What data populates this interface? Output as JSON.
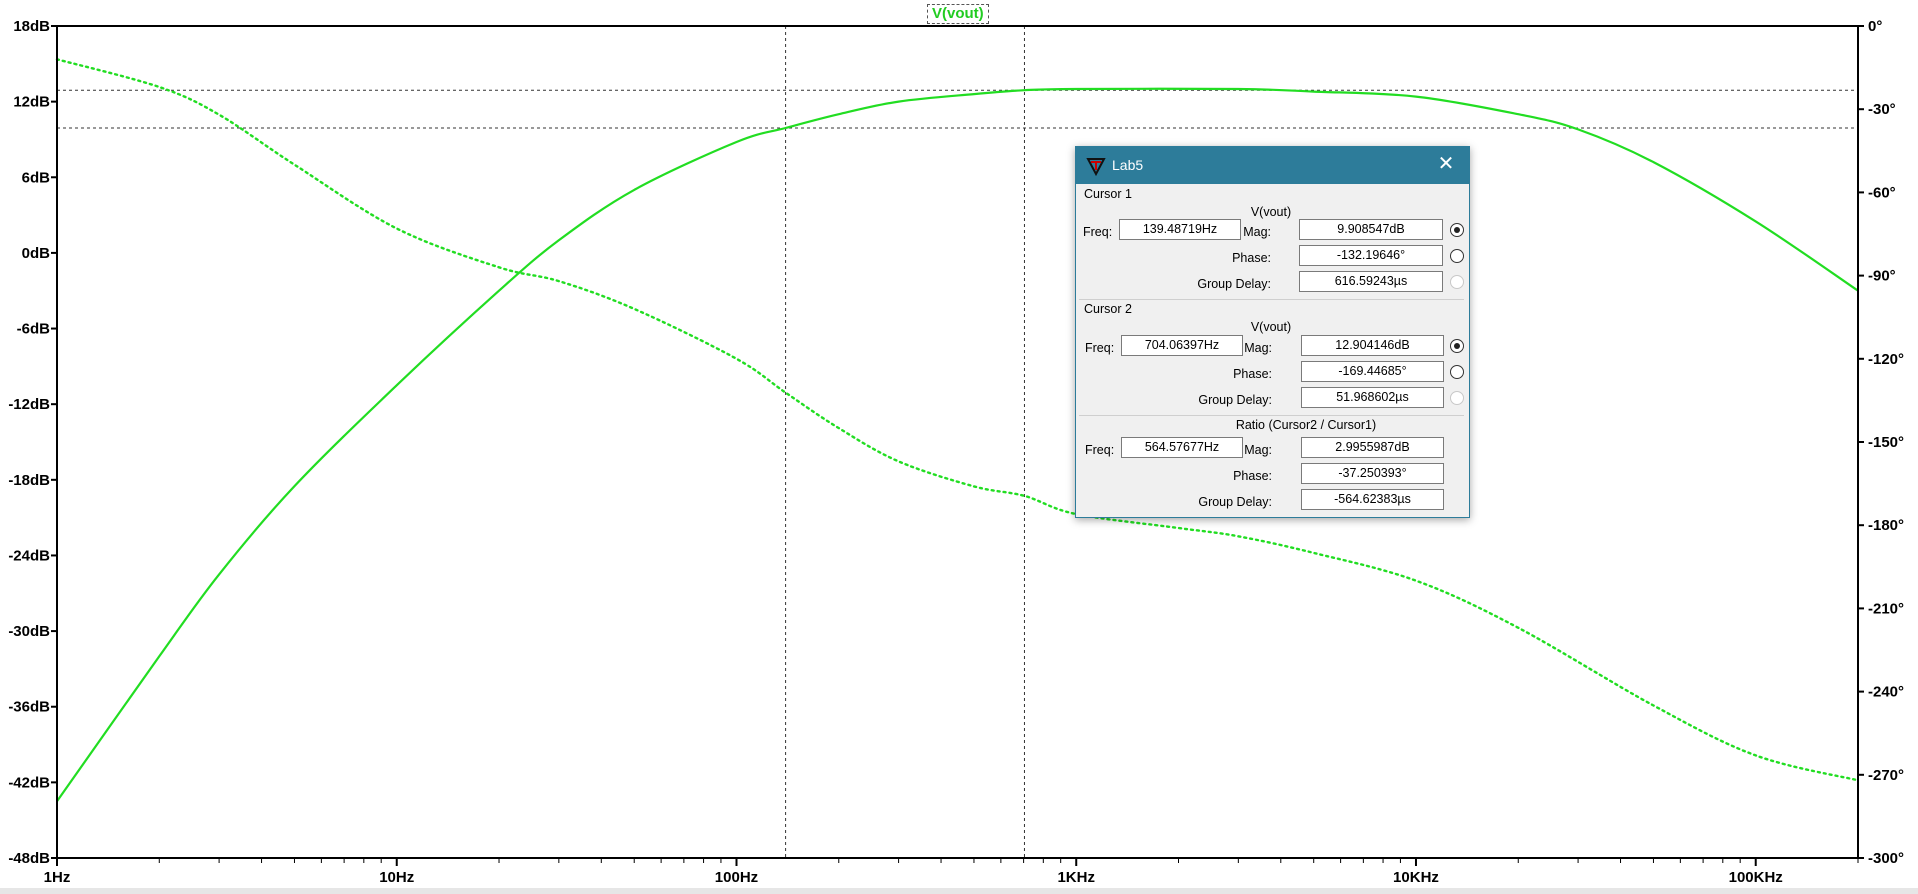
{
  "chart_data": {
    "type": "line",
    "trace_name": "V(vout)",
    "x_scale": "log",
    "xlim_hz": [
      1,
      200000
    ],
    "x_ticks": [
      {
        "value": 1,
        "label": "1Hz"
      },
      {
        "value": 10,
        "label": "10Hz"
      },
      {
        "value": 100,
        "label": "100Hz"
      },
      {
        "value": 1000,
        "label": "1KHz"
      },
      {
        "value": 10000,
        "label": "10KHz"
      },
      {
        "value": 100000,
        "label": "100KHz"
      }
    ],
    "left_axis": {
      "unit": "dB",
      "range": [
        -48,
        18
      ],
      "ticks": [
        {
          "value": 18,
          "label": "18dB"
        },
        {
          "value": 12,
          "label": "12dB"
        },
        {
          "value": 6,
          "label": "6dB"
        },
        {
          "value": 0,
          "label": "0dB"
        },
        {
          "value": -6,
          "label": "-6dB"
        },
        {
          "value": -12,
          "label": "-12dB"
        },
        {
          "value": -18,
          "label": "-18dB"
        },
        {
          "value": -24,
          "label": "-24dB"
        },
        {
          "value": -30,
          "label": "-30dB"
        },
        {
          "value": -36,
          "label": "-36dB"
        },
        {
          "value": -42,
          "label": "-42dB"
        },
        {
          "value": -48,
          "label": "-48dB"
        }
      ]
    },
    "right_axis": {
      "unit": "degrees",
      "range": [
        -300,
        0
      ],
      "ticks": [
        {
          "value": 0,
          "label": "0°"
        },
        {
          "value": -30,
          "label": "-30°"
        },
        {
          "value": -60,
          "label": "-60°"
        },
        {
          "value": -90,
          "label": "-90°"
        },
        {
          "value": -120,
          "label": "-120°"
        },
        {
          "value": -150,
          "label": "-150°"
        },
        {
          "value": -180,
          "label": "-180°"
        },
        {
          "value": -210,
          "label": "-210°"
        },
        {
          "value": -240,
          "label": "-240°"
        },
        {
          "value": -270,
          "label": "-270°"
        },
        {
          "value": -300,
          "label": "-300°"
        }
      ]
    },
    "magnitude_series": {
      "style": "solid",
      "points": [
        [
          1,
          -43.5
        ],
        [
          2,
          -32
        ],
        [
          3,
          -25.5
        ],
        [
          5,
          -18.5
        ],
        [
          10,
          -10.5
        ],
        [
          20,
          -3
        ],
        [
          30,
          1
        ],
        [
          50,
          5
        ],
        [
          100,
          8.8
        ],
        [
          139.48719,
          9.908547
        ],
        [
          200,
          11
        ],
        [
          300,
          12
        ],
        [
          500,
          12.6
        ],
        [
          704.06397,
          12.904146
        ],
        [
          1000,
          13
        ],
        [
          3000,
          13
        ],
        [
          5000,
          12.8
        ],
        [
          10000,
          12.4
        ],
        [
          20000,
          11
        ],
        [
          30000,
          9.8
        ],
        [
          50000,
          7.2
        ],
        [
          100000,
          2.5
        ],
        [
          200000,
          -3
        ]
      ]
    },
    "phase_series": {
      "style": "dotted",
      "points": [
        [
          1,
          -12
        ],
        [
          2,
          -22
        ],
        [
          3,
          -32
        ],
        [
          5,
          -50
        ],
        [
          10,
          -73
        ],
        [
          20,
          -87
        ],
        [
          30,
          -92
        ],
        [
          50,
          -102
        ],
        [
          100,
          -120
        ],
        [
          139.48719,
          -132.19646
        ],
        [
          200,
          -145
        ],
        [
          300,
          -157
        ],
        [
          500,
          -166
        ],
        [
          704.06397,
          -169.44685
        ],
        [
          1000,
          -176
        ],
        [
          2000,
          -181
        ],
        [
          3000,
          -184
        ],
        [
          5000,
          -190
        ],
        [
          10000,
          -200
        ],
        [
          20000,
          -217
        ],
        [
          50000,
          -245
        ],
        [
          100000,
          -263
        ],
        [
          200000,
          -272
        ]
      ]
    },
    "cursor_lines": {
      "x_hz": [
        139.48719,
        704.06397
      ],
      "y_db": [
        9.908547,
        12.904146
      ]
    },
    "grid": false,
    "colors": {
      "trace": "#22dd22",
      "cursor": "#333333",
      "axis": "#000000"
    }
  },
  "dialog": {
    "title": "Lab5",
    "cursor1": {
      "section_label": "Cursor 1",
      "trace": "V(vout)",
      "freq_label": "Freq:",
      "freq": "139.48719Hz",
      "mag_label": "Mag:",
      "mag": "9.908547dB",
      "phase_label": "Phase:",
      "phase": "-132.19646°",
      "group_delay_label": "Group Delay:",
      "group_delay": "616.59243µs"
    },
    "cursor2": {
      "section_label": "Cursor 2",
      "trace": "V(vout)",
      "freq_label": "Freq:",
      "freq": "704.06397Hz",
      "mag_label": "Mag:",
      "mag": "12.904146dB",
      "phase_label": "Phase:",
      "phase": "-169.44685°",
      "group_delay_label": "Group Delay:",
      "group_delay": "51.968602µs"
    },
    "ratio": {
      "section_label": "Ratio (Cursor2 / Cursor1)",
      "freq_label": "Freq:",
      "freq": "564.57677Hz",
      "mag_label": "Mag:",
      "mag": "2.9955987dB",
      "phase_label": "Phase:",
      "phase": "-37.250393°",
      "group_delay_label": "Group Delay:",
      "group_delay": "-564.62383µs"
    },
    "icons": {
      "app": "ltspice-icon",
      "close": "close-icon"
    }
  }
}
